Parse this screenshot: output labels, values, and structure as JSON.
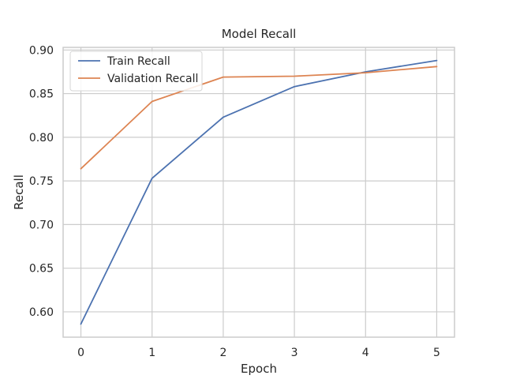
{
  "chart_data": {
    "type": "line",
    "title": "Model Recall",
    "xlabel": "Epoch",
    "ylabel": "Recall",
    "x": [
      0,
      1,
      2,
      3,
      4,
      5
    ],
    "series": [
      {
        "name": "Train Recall",
        "values": [
          0.586,
          0.753,
          0.823,
          0.858,
          0.875,
          0.888
        ],
        "color": "#4c72b0"
      },
      {
        "name": "Validation Recall",
        "values": [
          0.764,
          0.841,
          0.869,
          0.87,
          0.874,
          0.881
        ],
        "color": "#dd8452"
      }
    ],
    "xlim": [
      -0.25,
      5.25
    ],
    "ylim": [
      0.571,
      0.903
    ],
    "xticks": [
      0,
      1,
      2,
      3,
      4,
      5
    ],
    "yticks": [
      0.6,
      0.65,
      0.7,
      0.75,
      0.8,
      0.85,
      0.9
    ],
    "ytick_labels": [
      "0.60",
      "0.65",
      "0.70",
      "0.75",
      "0.80",
      "0.85",
      "0.90"
    ],
    "grid": true,
    "legend_position": "top-left"
  }
}
